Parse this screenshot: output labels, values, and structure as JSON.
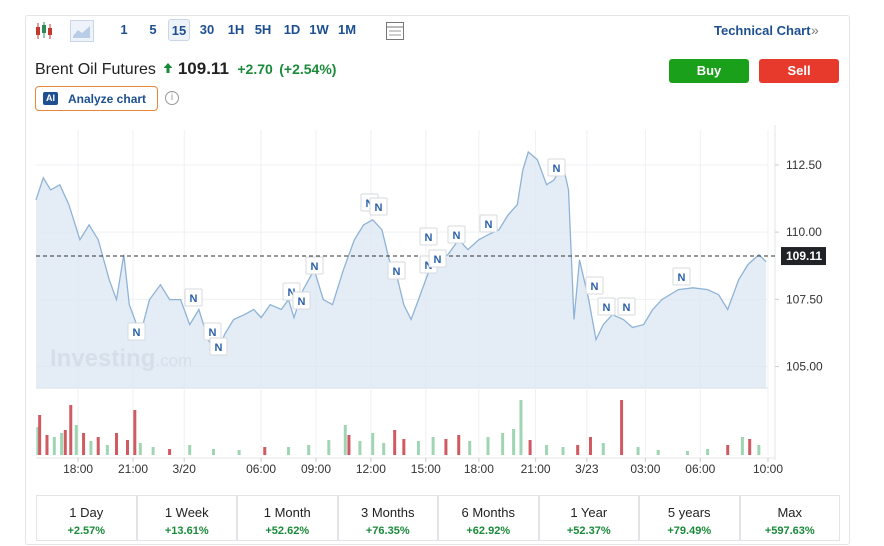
{
  "toolbar": {
    "intervals": [
      "1",
      "5",
      "15",
      "30",
      "1H",
      "5H",
      "1D",
      "1W",
      "1M"
    ],
    "technical_chart": "Technical Chart",
    "more": "»"
  },
  "header": {
    "title": "Brent Oil Futures",
    "price": "109.11",
    "change": "+2.70",
    "change_percent": "(+2.54%)",
    "buy": "Buy",
    "sell": "Sell",
    "ai_badge": "AI",
    "analyze": "Analyze chart",
    "info": "i"
  },
  "chart_data": {
    "type": "line",
    "color": "#8fb3d6",
    "x": [
      -2.3,
      -1.9,
      -1.5,
      -1.0,
      -0.5,
      0.1,
      0.6,
      1.1,
      1.7,
      2.1,
      2.5,
      2.8,
      3.4,
      3.9,
      4.5,
      5.0,
      5.6,
      6.1,
      6.6,
      7.1,
      7.6,
      8.0,
      8.5,
      9.1,
      9.6,
      10.0,
      10.5,
      11.1,
      11.5,
      11.8,
      12.3,
      12.9,
      13.4,
      13.9,
      14.5,
      15.1,
      15.6,
      16.1,
      16.6,
      17.0,
      17.4,
      17.8,
      18.2,
      18.6,
      19.1,
      19.7,
      20.2,
      20.8,
      21.3,
      21.9,
      22.4,
      23.0,
      23.5,
      24.0,
      24.3,
      24.6,
      25.1,
      25.6,
      26.0,
      26.5,
      26.8,
      27.1,
      27.4,
      27.9,
      28.3,
      28.7,
      29.2,
      29.8,
      30.3,
      30.9,
      31.4,
      31.9,
      32.8,
      33.6,
      34.4,
      35.0,
      35.5,
      36.1,
      36.6,
      37.2,
      37.6
    ],
    "values": [
      111.2,
      112.02,
      111.57,
      111.76,
      111.02,
      109.72,
      110.27,
      109.72,
      108.23,
      107.49,
      109.16,
      107.3,
      106.19,
      107.49,
      108.04,
      107.49,
      107.49,
      106.56,
      107.12,
      106.0,
      105.45,
      106.19,
      106.75,
      106.93,
      107.12,
      106.82,
      107.3,
      107.12,
      107.49,
      106.82,
      107.86,
      108.6,
      107.49,
      107.3,
      108.6,
      109.72,
      110.27,
      110.46,
      110.09,
      108.97,
      108.42,
      107.3,
      106.75,
      107.49,
      108.42,
      108.97,
      109.16,
      109.72,
      109.35,
      109.72,
      109.9,
      110.09,
      110.64,
      111.02,
      112.31,
      112.98,
      112.69,
      111.76,
      111.94,
      112.5,
      111.57,
      106.75,
      108.97,
      107.49,
      106.0,
      106.56,
      106.93,
      106.75,
      106.45,
      106.56,
      107.12,
      107.49,
      107.86,
      107.93,
      107.86,
      107.67,
      107.12,
      108.23,
      108.79,
      109.16,
      108.9
    ],
    "xlim": [
      -2.3,
      37.7
    ],
    "xticks": [
      {
        "value": 0,
        "label": "18:00"
      },
      {
        "value": 3.0,
        "label": "21:00"
      },
      {
        "value": 5.8,
        "label": "3/20"
      },
      {
        "value": 10.0,
        "label": "06:00"
      },
      {
        "value": 13.0,
        "label": "09:00"
      },
      {
        "value": 16.0,
        "label": "12:00"
      },
      {
        "value": 19.0,
        "label": "15:00"
      },
      {
        "value": 21.9,
        "label": "18:00"
      },
      {
        "value": 25.0,
        "label": "21:00"
      },
      {
        "value": 27.8,
        "label": "3/23"
      },
      {
        "value": 31.0,
        "label": "03:00"
      },
      {
        "value": 34.0,
        "label": "06:00"
      },
      {
        "value": 37.7,
        "label": "10:00"
      }
    ],
    "ylim": [
      104.2,
      113.8
    ],
    "yticks": [
      {
        "value": 105,
        "label": "105.00"
      },
      {
        "value": 107.5,
        "label": "107.50"
      },
      {
        "value": 110,
        "label": "110.00"
      },
      {
        "value": 112.5,
        "label": "112.50"
      }
    ],
    "grid": true,
    "last_price": {
      "value": 109.11,
      "label": "109.11"
    },
    "news_marker": "N",
    "watermark": {
      "brand": "Investing",
      "suffix": ".com"
    },
    "volume": {
      "vlim": [
        0,
        57
      ],
      "x": [
        -2.2,
        -2.1,
        -1.7,
        -1.3,
        -0.9,
        -0.7,
        -0.4,
        -0.1,
        0.3,
        0.7,
        1.1,
        1.6,
        2.1,
        2.7,
        3.1,
        3.4,
        4.1,
        5.0,
        6.1,
        7.4,
        8.8,
        10.2,
        11.5,
        12.6,
        13.7,
        14.6,
        14.8,
        15.4,
        16.1,
        16.7,
        17.3,
        17.8,
        18.6,
        19.4,
        20.1,
        20.8,
        21.4,
        22.4,
        23.2,
        23.8,
        24.2,
        24.7,
        25.6,
        26.5,
        27.3,
        28.0,
        28.7,
        29.7,
        30.6,
        31.7,
        33.3,
        34.4,
        35.5,
        36.3,
        36.7,
        37.2
      ],
      "values": [
        28,
        40,
        20,
        18,
        22,
        25,
        50,
        30,
        22,
        14,
        18,
        10,
        22,
        15,
        45,
        12,
        8,
        6,
        10,
        6,
        5,
        8,
        8,
        10,
        15,
        30,
        20,
        14,
        22,
        12,
        25,
        16,
        14,
        18,
        16,
        20,
        14,
        18,
        22,
        26,
        55,
        15,
        10,
        8,
        10,
        18,
        12,
        55,
        8,
        5,
        4,
        6,
        10,
        18,
        16,
        10
      ],
      "colors": [
        "#9fd5b2",
        "#cf5a62",
        "#cf5a62",
        "#9fd5b2",
        "#9fd5b2",
        "#cf5a62",
        "#cf5a62",
        "#9fd5b2",
        "#cf5a62",
        "#9fd5b2",
        "#cf5a62",
        "#9fd5b2",
        "#cf5a62",
        "#cf5a62",
        "#cf5a62",
        "#9fd5b2",
        "#9fd5b2",
        "#cf5a62",
        "#9fd5b2",
        "#9fd5b2",
        "#9fd5b2",
        "#cf5a62",
        "#9fd5b2",
        "#9fd5b2",
        "#9fd5b2",
        "#9fd5b2",
        "#cf5a62",
        "#9fd5b2",
        "#9fd5b2",
        "#9fd5b2",
        "#cf5a62",
        "#cf5a62",
        "#9fd5b2",
        "#9fd5b2",
        "#cf5a62",
        "#cf5a62",
        "#9fd5b2",
        "#9fd5b2",
        "#9fd5b2",
        "#9fd5b2",
        "#9fd5b2",
        "#cf5a62",
        "#9fd5b2",
        "#9fd5b2",
        "#cf5a62",
        "#cf5a62",
        "#9fd5b2",
        "#cf5a62",
        "#9fd5b2",
        "#9fd5b2",
        "#9fd5b2",
        "#9fd5b2",
        "#cf5a62",
        "#9fd5b2",
        "#cf5a62",
        "#9fd5b2"
      ]
    }
  },
  "periods": [
    {
      "name": "1 Day",
      "change": "+2.57%"
    },
    {
      "name": "1 Week",
      "change": "+13.61%"
    },
    {
      "name": "1 Month",
      "change": "+52.62%"
    },
    {
      "name": "3 Months",
      "change": "+76.35%"
    },
    {
      "name": "6 Months",
      "change": "+62.92%"
    },
    {
      "name": "1 Year",
      "change": "+52.37%"
    },
    {
      "name": "5 years",
      "change": "+79.49%"
    },
    {
      "name": "Max",
      "change": "+597.63%"
    }
  ]
}
